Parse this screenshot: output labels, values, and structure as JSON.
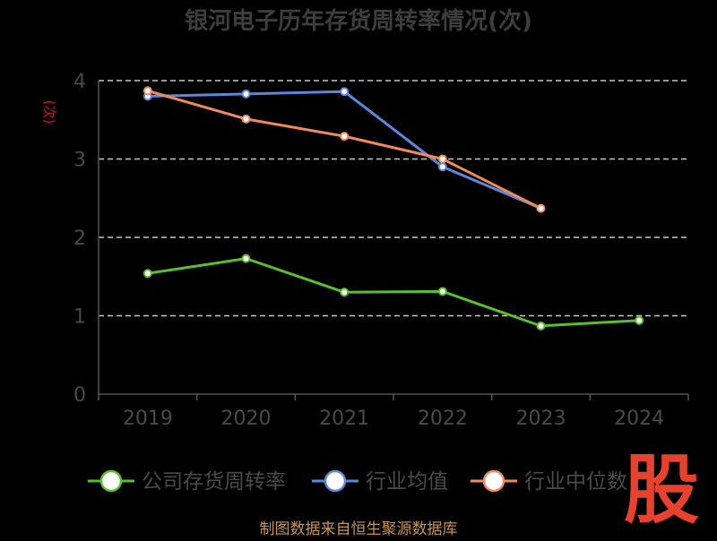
{
  "chart_data": {
    "type": "line",
    "title": "银河电子历年存货周转率情况(次)",
    "ylabel": "(次)",
    "xlabel": "",
    "categories": [
      "2019",
      "2020",
      "2021",
      "2022",
      "2023",
      "2024"
    ],
    "ylim": [
      0,
      4
    ],
    "yticks": [
      0,
      1,
      2,
      3,
      4
    ],
    "grid": true,
    "legend_position": "bottom",
    "series": [
      {
        "name": "公司存货周转率",
        "color": "#5ac02a",
        "values": [
          1.54,
          1.73,
          1.3,
          1.31,
          0.87,
          0.94
        ]
      },
      {
        "name": "行业均值",
        "color": "#5b87dc",
        "values": [
          3.8,
          3.83,
          3.86,
          2.9,
          2.37,
          null
        ]
      },
      {
        "name": "行业中位数",
        "color": "#f08a5d",
        "values": [
          3.87,
          3.51,
          3.29,
          3.0,
          2.37,
          null
        ]
      }
    ]
  },
  "logo_text": "股",
  "source": "制图数据来自恒生聚源数据库",
  "colors": {
    "background": "#000000",
    "title": "#3d3d3d",
    "axis": "#555555",
    "tick_label": "#4a4a4a",
    "ylabel": "#dd1111",
    "source": "#c8964b",
    "logo": "#e8412c"
  }
}
